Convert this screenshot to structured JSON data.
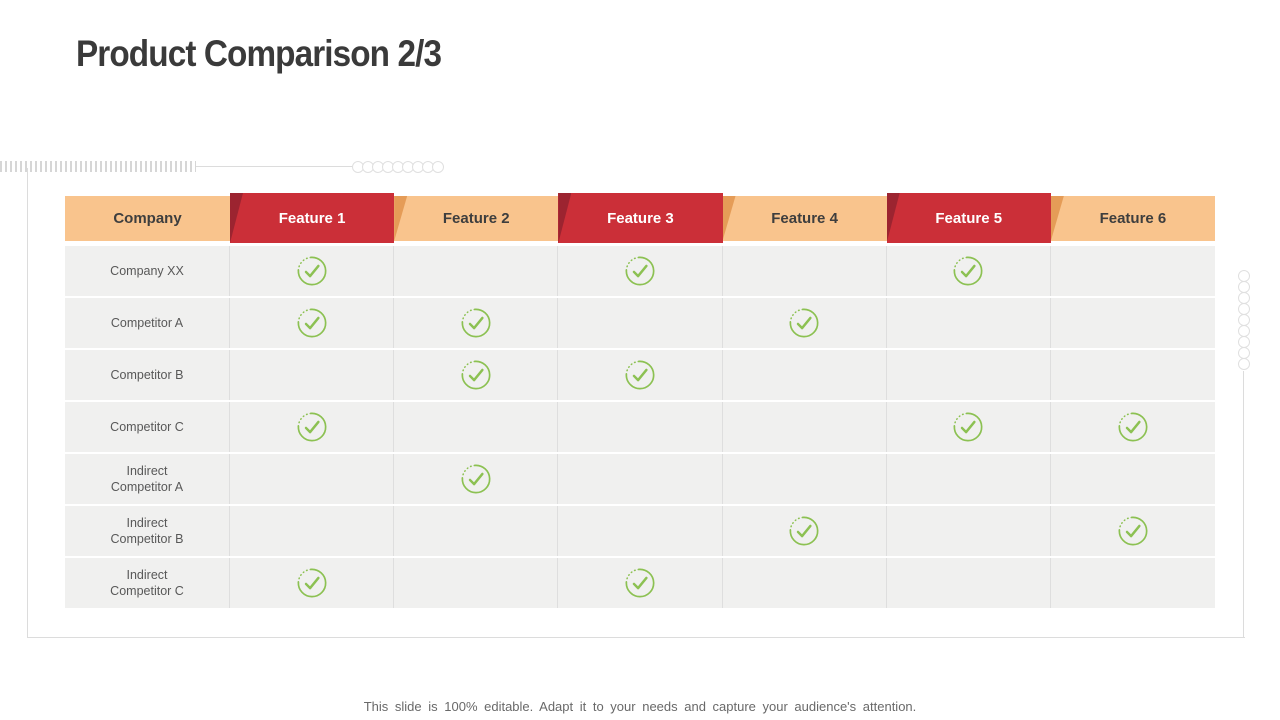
{
  "slide": {
    "title": "Product Comparison 2/3",
    "footer": "This slide is 100% editable. Adapt it to your needs and capture your audience's attention."
  },
  "table": {
    "columns": [
      "Company",
      "Feature 1",
      "Feature 2",
      "Feature 3",
      "Feature 4",
      "Feature 5",
      "Feature 6"
    ],
    "rows": [
      {
        "company": "Company XX",
        "checks": [
          1,
          0,
          1,
          0,
          1,
          0
        ]
      },
      {
        "company": "Competitor A",
        "checks": [
          1,
          1,
          0,
          1,
          0,
          0
        ]
      },
      {
        "company": "Competitor B",
        "checks": [
          0,
          1,
          1,
          0,
          0,
          0
        ]
      },
      {
        "company": "Competitor C",
        "checks": [
          1,
          0,
          0,
          0,
          1,
          1
        ]
      },
      {
        "company": "Indirect Competitor A",
        "checks": [
          0,
          1,
          0,
          0,
          0,
          0
        ]
      },
      {
        "company": "Indirect Competitor B",
        "checks": [
          0,
          0,
          0,
          1,
          0,
          1
        ]
      },
      {
        "company": "Indirect Competitor C",
        "checks": [
          1,
          0,
          1,
          0,
          0,
          0
        ]
      }
    ],
    "check_icon": "check-circle-icon"
  },
  "colors": {
    "header_peach": "#f9c48d",
    "header_peach_fold": "#e59c57",
    "header_red": "#cb2f38",
    "header_red_fold": "#9c2430",
    "check_green": "#8cc152",
    "row_background": "#f0f0ef",
    "title_text": "#3a3a3a",
    "footer_text": "#696969"
  }
}
